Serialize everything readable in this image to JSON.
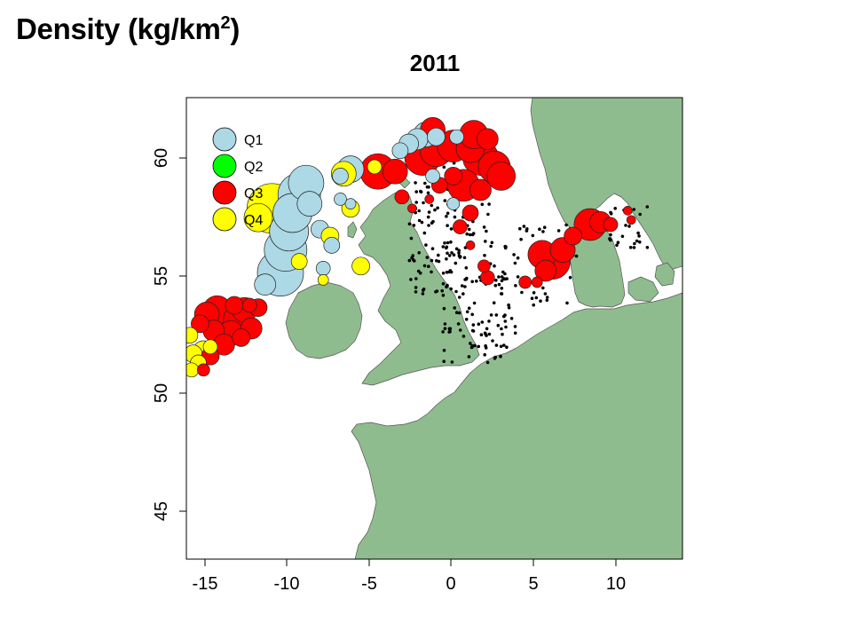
{
  "slide": {
    "title_main": "Density (kg/km",
    "title_sup": "2",
    "title_end": ")"
  },
  "map": {
    "title": "2011",
    "extent": {
      "lon": [
        -15,
        14
      ],
      "lat": [
        43,
        63
      ]
    },
    "x_ticks": [
      "-15",
      "-10",
      "-5",
      "0",
      "5",
      "10"
    ],
    "y_ticks": [
      "45",
      "50",
      "55",
      "60"
    ],
    "land_color": "#8fbc8f",
    "sea_color": "#ffffff",
    "legend": [
      {
        "label": "Q1",
        "color": "#add8e6"
      },
      {
        "label": "Q2",
        "color": "#00ff00"
      },
      {
        "label": "Q3",
        "color": "#ff0000"
      },
      {
        "label": "Q4",
        "color": "#ffff00"
      }
    ],
    "circles": [
      {
        "q": "Q1",
        "lon": -9.5,
        "lat": 55.4,
        "r": 26
      },
      {
        "q": "Q1",
        "lon": -9.2,
        "lat": 56.4,
        "r": 24
      },
      {
        "q": "Q1",
        "lon": -9.0,
        "lat": 57.2,
        "r": 22
      },
      {
        "q": "Q1",
        "lon": -8.8,
        "lat": 58.0,
        "r": 22
      },
      {
        "q": "Q1",
        "lon": -8.4,
        "lat": 58.8,
        "r": 24
      },
      {
        "q": "Q1",
        "lon": -8.0,
        "lat": 59.3,
        "r": 20
      },
      {
        "q": "Q1",
        "lon": -7.8,
        "lat": 58.4,
        "r": 14
      },
      {
        "q": "Q1",
        "lon": -10.4,
        "lat": 54.9,
        "r": 12
      },
      {
        "q": "Q1",
        "lon": -7.2,
        "lat": 57.3,
        "r": 10
      },
      {
        "q": "Q1",
        "lon": -6.5,
        "lat": 56.6,
        "r": 9
      },
      {
        "q": "Q1",
        "lon": -6.0,
        "lat": 58.6,
        "r": 7
      },
      {
        "q": "Q1",
        "lon": -5.4,
        "lat": 58.4,
        "r": 6
      },
      {
        "q": "Q1",
        "lon": -5.4,
        "lat": 59.9,
        "r": 15
      },
      {
        "q": "Q1",
        "lon": -6.0,
        "lat": 59.6,
        "r": 9
      },
      {
        "q": "Q1",
        "lon": -7.0,
        "lat": 55.6,
        "r": 8
      },
      {
        "q": "Q1",
        "lon": -2.0,
        "lat": 61.0,
        "r": 11
      },
      {
        "q": "Q1",
        "lon": -1.5,
        "lat": 61.2,
        "r": 12
      },
      {
        "q": "Q1",
        "lon": -1.0,
        "lat": 61.4,
        "r": 14
      },
      {
        "q": "Q1",
        "lon": -0.4,
        "lat": 61.3,
        "r": 10
      },
      {
        "q": "Q1",
        "lon": 0.8,
        "lat": 61.3,
        "r": 8
      },
      {
        "q": "Q1",
        "lon": -0.6,
        "lat": 59.6,
        "r": 8
      },
      {
        "q": "Q1",
        "lon": 0.6,
        "lat": 58.4,
        "r": 7
      },
      {
        "q": "Q1",
        "lon": -2.5,
        "lat": 60.7,
        "r": 9
      },
      {
        "q": "Q4",
        "lon": -10.0,
        "lat": 58.2,
        "r": 28
      },
      {
        "q": "Q4",
        "lon": -10.8,
        "lat": 57.8,
        "r": 16
      },
      {
        "q": "Q4",
        "lon": -5.8,
        "lat": 59.7,
        "r": 14
      },
      {
        "q": "Q4",
        "lon": -6.6,
        "lat": 57.0,
        "r": 10
      },
      {
        "q": "Q4",
        "lon": -5.4,
        "lat": 58.2,
        "r": 10
      },
      {
        "q": "Q4",
        "lon": -4.8,
        "lat": 55.7,
        "r": 10
      },
      {
        "q": "Q4",
        "lon": -4.0,
        "lat": 60.0,
        "r": 8
      },
      {
        "q": "Q4",
        "lon": -14.8,
        "lat": 52.7,
        "r": 9
      },
      {
        "q": "Q4",
        "lon": -14.6,
        "lat": 51.9,
        "r": 10
      },
      {
        "q": "Q4",
        "lon": -14.0,
        "lat": 52.0,
        "r": 12
      },
      {
        "q": "Q4",
        "lon": -14.3,
        "lat": 51.5,
        "r": 9
      },
      {
        "q": "Q4",
        "lon": -13.6,
        "lat": 52.2,
        "r": 8
      },
      {
        "q": "Q4",
        "lon": -14.7,
        "lat": 51.2,
        "r": 8
      },
      {
        "q": "Q4",
        "lon": -8.4,
        "lat": 55.9,
        "r": 9
      },
      {
        "q": "Q4",
        "lon": -7.0,
        "lat": 55.1,
        "r": 6
      },
      {
        "q": "Q3",
        "lon": -3.8,
        "lat": 59.8,
        "r": 20
      },
      {
        "q": "Q3",
        "lon": -2.8,
        "lat": 59.8,
        "r": 14
      },
      {
        "q": "Q3",
        "lon": -1.2,
        "lat": 60.4,
        "r": 20
      },
      {
        "q": "Q3",
        "lon": -0.4,
        "lat": 60.7,
        "r": 18
      },
      {
        "q": "Q3",
        "lon": 0.6,
        "lat": 60.9,
        "r": 18
      },
      {
        "q": "Q3",
        "lon": 1.6,
        "lat": 60.8,
        "r": 16
      },
      {
        "q": "Q3",
        "lon": 2.2,
        "lat": 60.4,
        "r": 20
      },
      {
        "q": "Q3",
        "lon": 3.0,
        "lat": 60.0,
        "r": 18
      },
      {
        "q": "Q3",
        "lon": 3.4,
        "lat": 59.6,
        "r": 16
      },
      {
        "q": "Q3",
        "lon": 1.8,
        "lat": 61.4,
        "r": 16
      },
      {
        "q": "Q3",
        "lon": -0.6,
        "lat": 61.6,
        "r": 14
      },
      {
        "q": "Q3",
        "lon": 2.6,
        "lat": 61.2,
        "r": 12
      },
      {
        "q": "Q3",
        "lon": 1.2,
        "lat": 59.2,
        "r": 18
      },
      {
        "q": "Q3",
        "lon": 0.6,
        "lat": 59.6,
        "r": 10
      },
      {
        "q": "Q3",
        "lon": 2.2,
        "lat": 59.0,
        "r": 12
      },
      {
        "q": "Q3",
        "lon": -0.2,
        "lat": 59.2,
        "r": 9
      },
      {
        "q": "Q3",
        "lon": 1.6,
        "lat": 58.0,
        "r": 9
      },
      {
        "q": "Q3",
        "lon": 1.0,
        "lat": 57.4,
        "r": 8
      },
      {
        "q": "Q3",
        "lon": -2.4,
        "lat": 58.7,
        "r": 8
      },
      {
        "q": "Q3",
        "lon": -1.8,
        "lat": 58.2,
        "r": 5
      },
      {
        "q": "Q3",
        "lon": -0.8,
        "lat": 58.6,
        "r": 5
      },
      {
        "q": "Q3",
        "lon": 1.6,
        "lat": 56.6,
        "r": 5
      },
      {
        "q": "Q3",
        "lon": 2.4,
        "lat": 55.7,
        "r": 7
      },
      {
        "q": "Q3",
        "lon": 2.6,
        "lat": 55.2,
        "r": 8
      },
      {
        "q": "Q3",
        "lon": 5.8,
        "lat": 56.2,
        "r": 16
      },
      {
        "q": "Q3",
        "lon": 6.4,
        "lat": 55.9,
        "r": 20
      },
      {
        "q": "Q3",
        "lon": 7.0,
        "lat": 56.4,
        "r": 14
      },
      {
        "q": "Q3",
        "lon": 6.0,
        "lat": 55.5,
        "r": 12
      },
      {
        "q": "Q3",
        "lon": 4.8,
        "lat": 55.0,
        "r": 7
      },
      {
        "q": "Q3",
        "lon": 5.5,
        "lat": 55.0,
        "r": 6
      },
      {
        "q": "Q3",
        "lon": 7.6,
        "lat": 57.0,
        "r": 10
      },
      {
        "q": "Q3",
        "lon": 8.6,
        "lat": 57.5,
        "r": 18
      },
      {
        "q": "Q3",
        "lon": 9.2,
        "lat": 57.6,
        "r": 12
      },
      {
        "q": "Q3",
        "lon": 9.8,
        "lat": 57.5,
        "r": 8
      },
      {
        "q": "Q3",
        "lon": 10.8,
        "lat": 58.1,
        "r": 5
      },
      {
        "q": "Q3",
        "lon": 11.0,
        "lat": 57.7,
        "r": 5
      },
      {
        "q": "Q3",
        "lon": -13.8,
        "lat": 53.6,
        "r": 14
      },
      {
        "q": "Q3",
        "lon": -13.2,
        "lat": 53.8,
        "r": 16
      },
      {
        "q": "Q3",
        "lon": -12.6,
        "lat": 53.5,
        "r": 18
      },
      {
        "q": "Q3",
        "lon": -12.0,
        "lat": 53.4,
        "r": 16
      },
      {
        "q": "Q3",
        "lon": -11.6,
        "lat": 53.8,
        "r": 14
      },
      {
        "q": "Q3",
        "lon": -11.2,
        "lat": 53.0,
        "r": 12
      },
      {
        "q": "Q3",
        "lon": -12.4,
        "lat": 52.8,
        "r": 14
      },
      {
        "q": "Q3",
        "lon": -13.4,
        "lat": 52.9,
        "r": 12
      },
      {
        "q": "Q3",
        "lon": -12.8,
        "lat": 52.3,
        "r": 12
      },
      {
        "q": "Q3",
        "lon": -13.6,
        "lat": 51.8,
        "r": 10
      },
      {
        "q": "Q3",
        "lon": -11.8,
        "lat": 52.6,
        "r": 10
      },
      {
        "q": "Q3",
        "lon": -14.2,
        "lat": 53.2,
        "r": 10
      },
      {
        "q": "Q3",
        "lon": -12.2,
        "lat": 54.0,
        "r": 10
      },
      {
        "q": "Q3",
        "lon": -11.3,
        "lat": 54.0,
        "r": 8
      },
      {
        "q": "Q3",
        "lon": -10.8,
        "lat": 53.9,
        "r": 10
      },
      {
        "q": "Q3",
        "lon": -14.0,
        "lat": 51.2,
        "r": 7
      }
    ]
  }
}
